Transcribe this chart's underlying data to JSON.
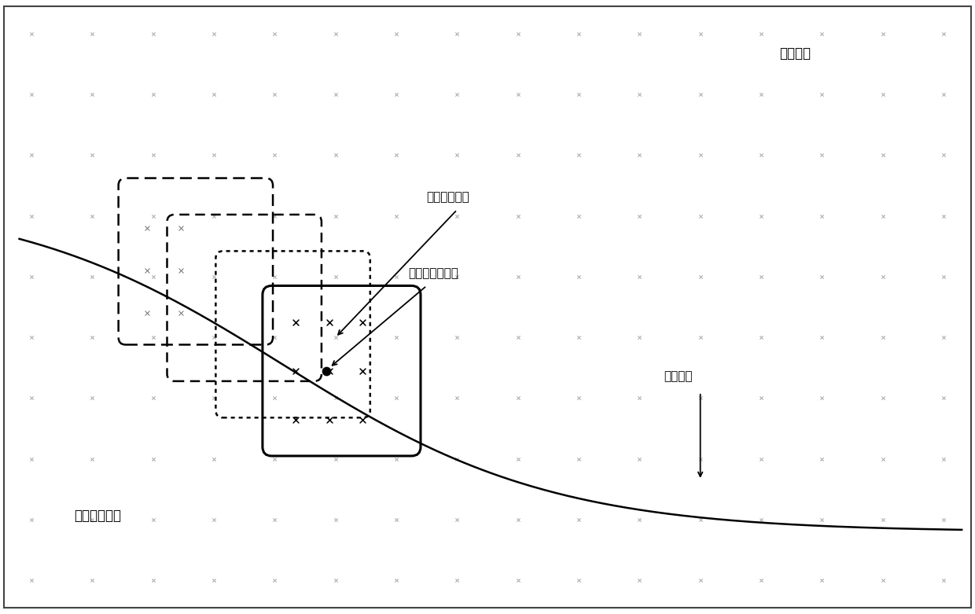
{
  "bg_color": "#ffffff",
  "grid_marker_color": "#aaaaaa",
  "grid_nx": 16,
  "grid_ny": 10,
  "label_shenjing_wangluo": "神经网络",
  "label_jubu_jihuan": "局部激活算子",
  "label_shenjing_shuru": "神经网络输入点",
  "label_shenjing_yuanzhong": "神经元中心点",
  "label_xitong_guidao": "系统轨迹",
  "trajectory_color": "#000000",
  "box_color": "#000000",
  "center_dot_color": "#000000",
  "arrow_color": "#000000",
  "xlim": [
    0,
    16
  ],
  "ylim": [
    0,
    10
  ],
  "figwidth": 12.4,
  "figheight": 7.81,
  "dpi": 100
}
